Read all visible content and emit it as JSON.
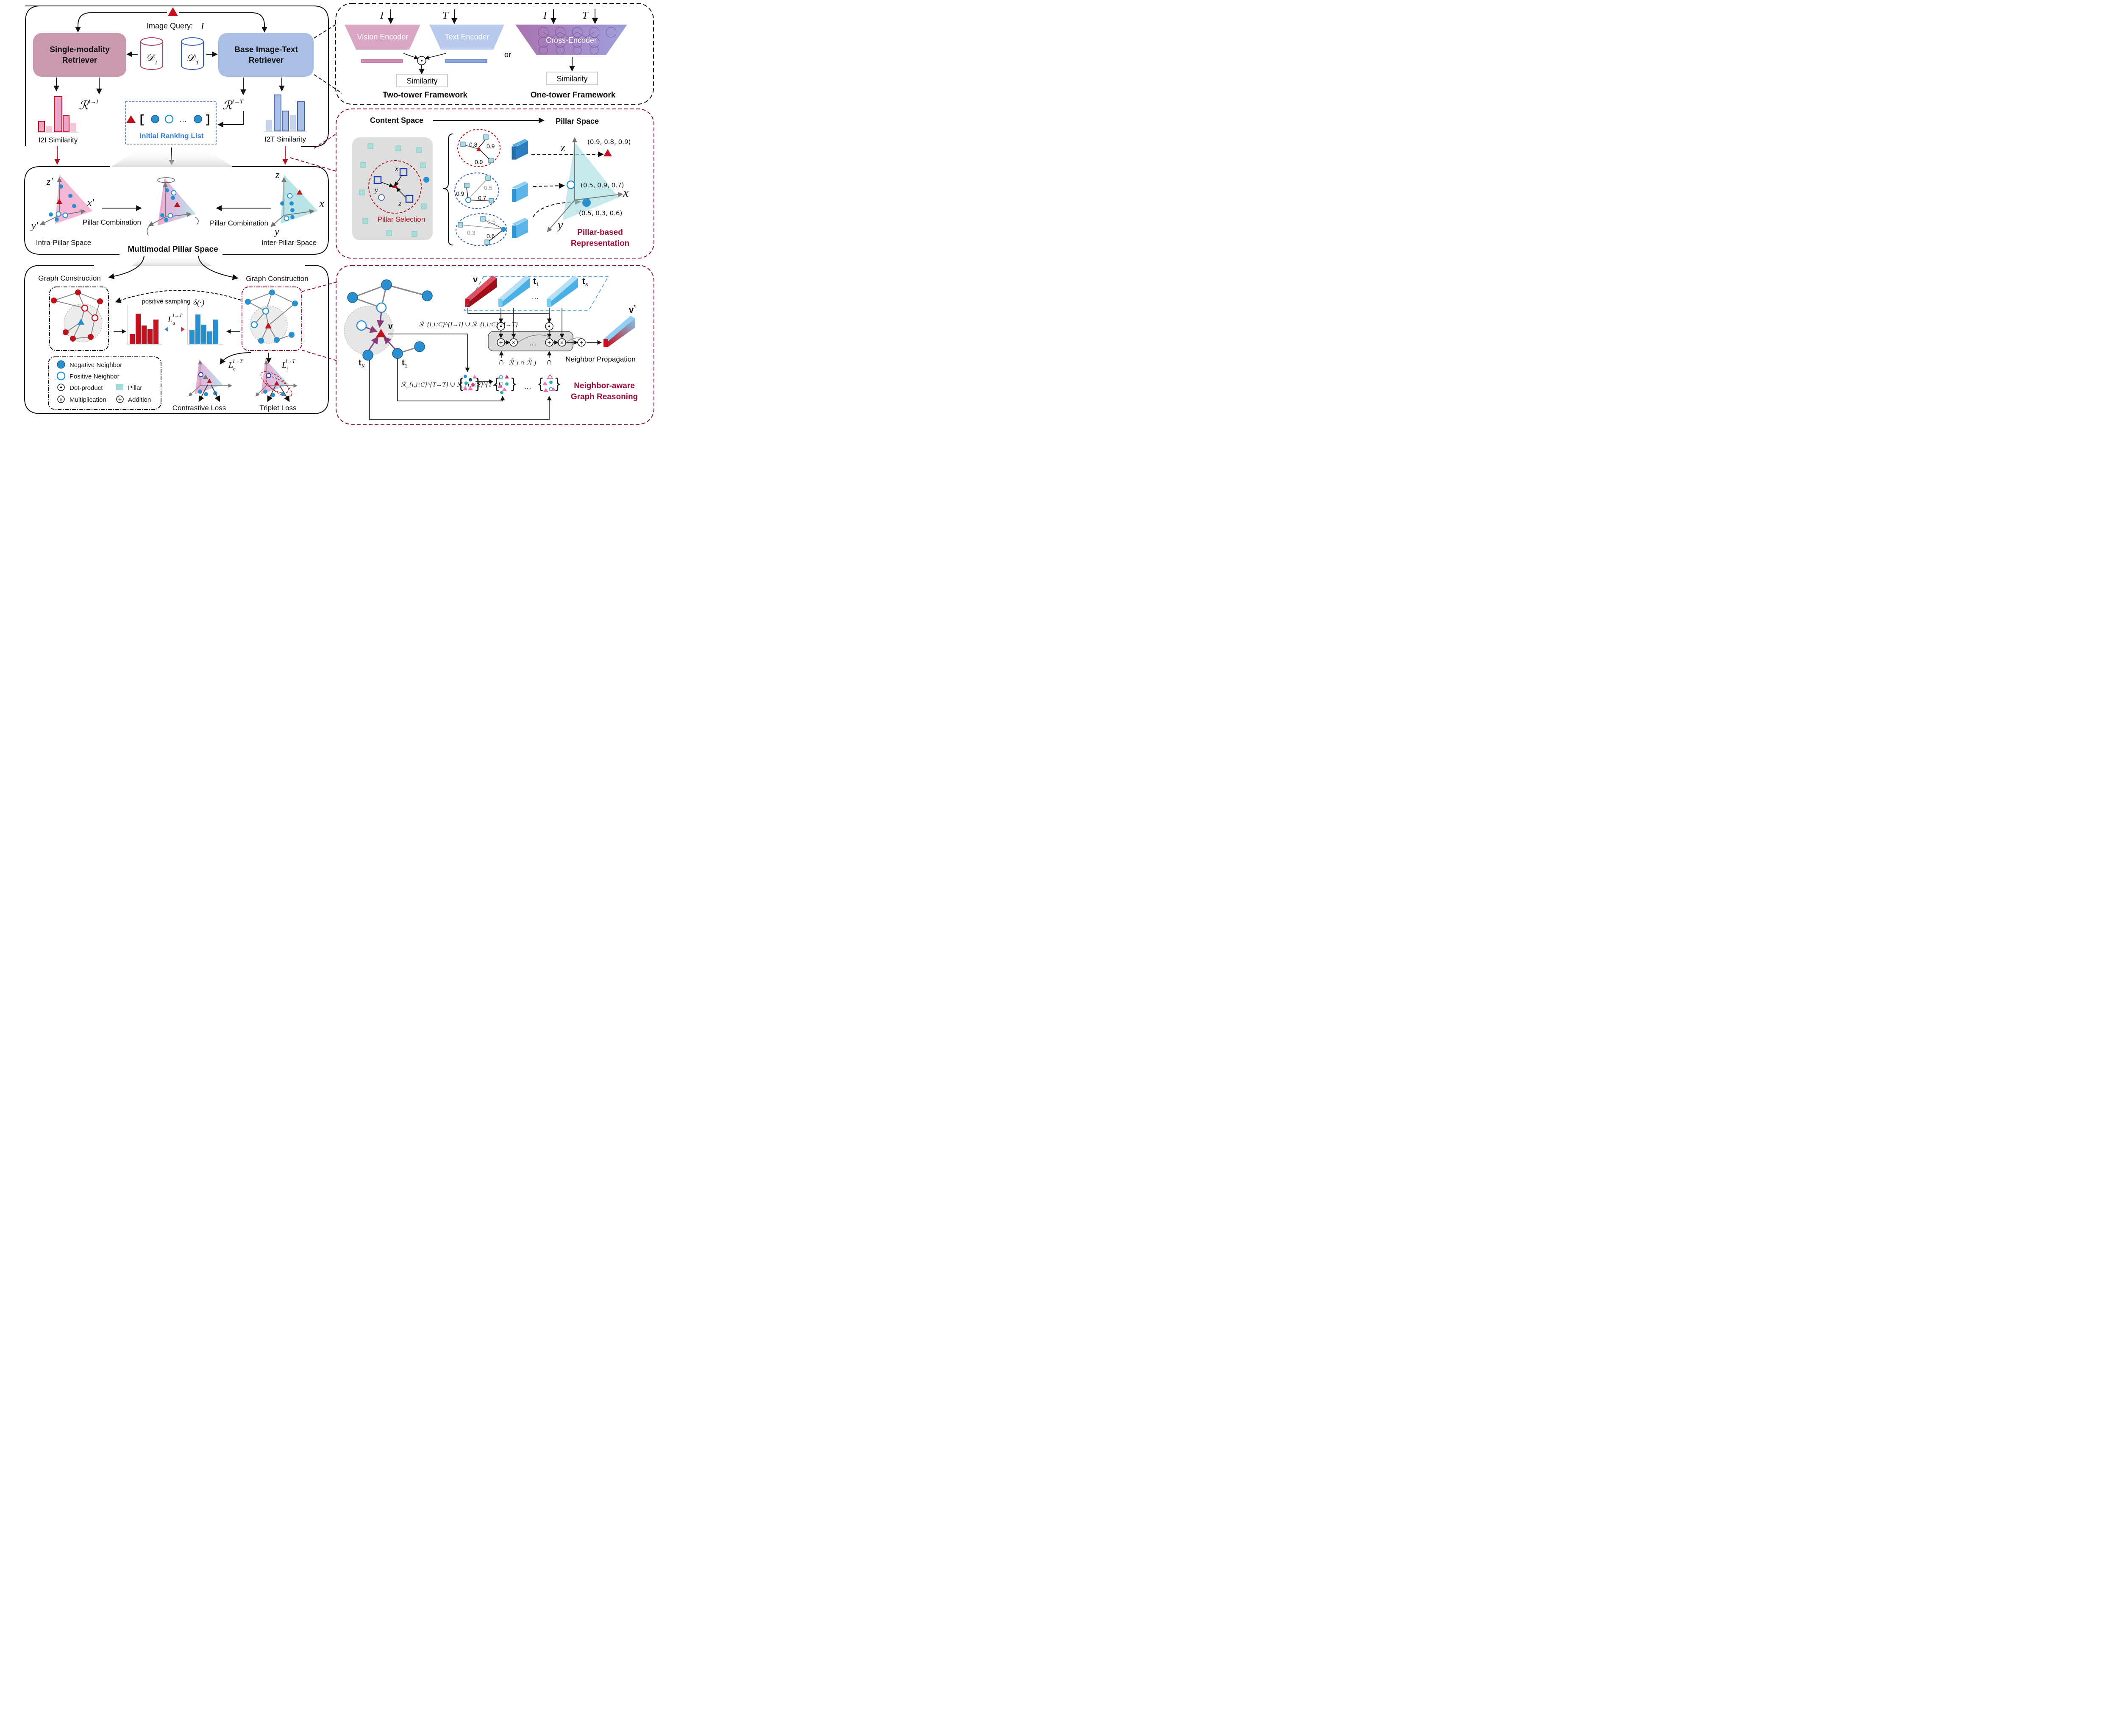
{
  "pipeline": {
    "image_query": "Image Query:",
    "image_query_symbol": "I",
    "single_modality_retriever": [
      "Single-modality",
      "Retriever"
    ],
    "base_retriever": [
      "Base Image-Text",
      "Retriever"
    ],
    "db_image": "𝒟",
    "db_image_sub": "I",
    "db_text": "𝒟",
    "db_text_sub": "T",
    "r_i2i": "ℛ",
    "r_i2i_sup": "I→I",
    "r_i2t": "ℛ",
    "r_i2t_sup": "I→T",
    "i2i_similarity": "I2I Similarity",
    "i2t_similarity": "I2T Similarity",
    "initial_ranking_list": "Initial Ranking List",
    "ranking_ellipsis": "…",
    "colors": {
      "red": "#c0121c",
      "blue": "#2a8fd0",
      "pink": "#f0a0c8",
      "lightblue": "#a8bfe6"
    }
  },
  "frameworks": {
    "input_i": "I",
    "input_t": "T",
    "vision_encoder": "Vision Encoder",
    "text_encoder": "Text Encoder",
    "cross_encoder": "Cross-Encoder",
    "or": "or",
    "similarity": "Similarity",
    "two_tower": "Two-tower Framework",
    "one_tower": "One-tower Framework"
  },
  "pillar_space_panel": {
    "content_space": "Content Space",
    "pillar_space": "Pillar Space",
    "pillar_selection": "Pillar Selection",
    "axis_x": "x",
    "axis_y": "y",
    "axis_z": "z",
    "group1": [
      "0.8",
      "0.9",
      "0.9"
    ],
    "group2": [
      "0.9",
      "0.7",
      "0.5"
    ],
    "group3": [
      "0.3",
      "0.6",
      "0.5"
    ],
    "coords": [
      "(0.9, 0.8, 0.9)",
      "(0.5, 0.9, 0.7)",
      "(0.5, 0.3, 0.6)"
    ],
    "representation_title": [
      "Pillar-based",
      "Representation"
    ]
  },
  "multimodal": {
    "intra_label": "Intra-Pillar Space",
    "inter_label": "Inter-Pillar Space",
    "pillar_combination": "Pillar Combination",
    "title": "Multimodal Pillar Space",
    "axis_zp": "z′",
    "axis_xp": "x′",
    "axis_yp": "y′",
    "axis_z": "z",
    "axis_x": "x",
    "axis_y": "y"
  },
  "graph": {
    "graph_construction": "Graph Construction",
    "positive_sampling": "positive sampling",
    "delta": "δ(·)",
    "la": "L",
    "la_sub": "a",
    "la_sup": "I→T",
    "lc": "L",
    "lc_sub": "c",
    "lc_sup": "I→T",
    "lt": "L",
    "lt_sub": "t",
    "lt_sup": "I→T",
    "contrastive_loss": "Contrastive Loss",
    "triplet_loss": "Triplet Loss",
    "legend": {
      "negative": "Negative Neighbor",
      "positive": "Positive Neighbor",
      "dot": "Dot-product",
      "pillar": "Pillar",
      "mult": "Multiplication",
      "add": "Addition"
    }
  },
  "reasoning": {
    "v": "v",
    "t1": "t",
    "t1_sub": "1",
    "tk": "t",
    "tk_sub": "K",
    "v_star": "v",
    "ellipsis": "…",
    "r_union_top": "ℛ",
    "r_union_top_expr": "ℛ_{i,1:C}^{I→I} ∪ ℛ_{i,1:C}^{I→T}",
    "r_union_bottom_expr": "ℛ_{i,1:C}^{T→T} ∪ ℛ_{i,1:C}^{T→I}",
    "r_inter_expr": "ℛ̃_i ∩ ℛ̃_j",
    "neighbor_propagation": "Neighbor Propagation",
    "title": [
      "Neighbor-aware",
      "Graph Reasoning"
    ]
  }
}
